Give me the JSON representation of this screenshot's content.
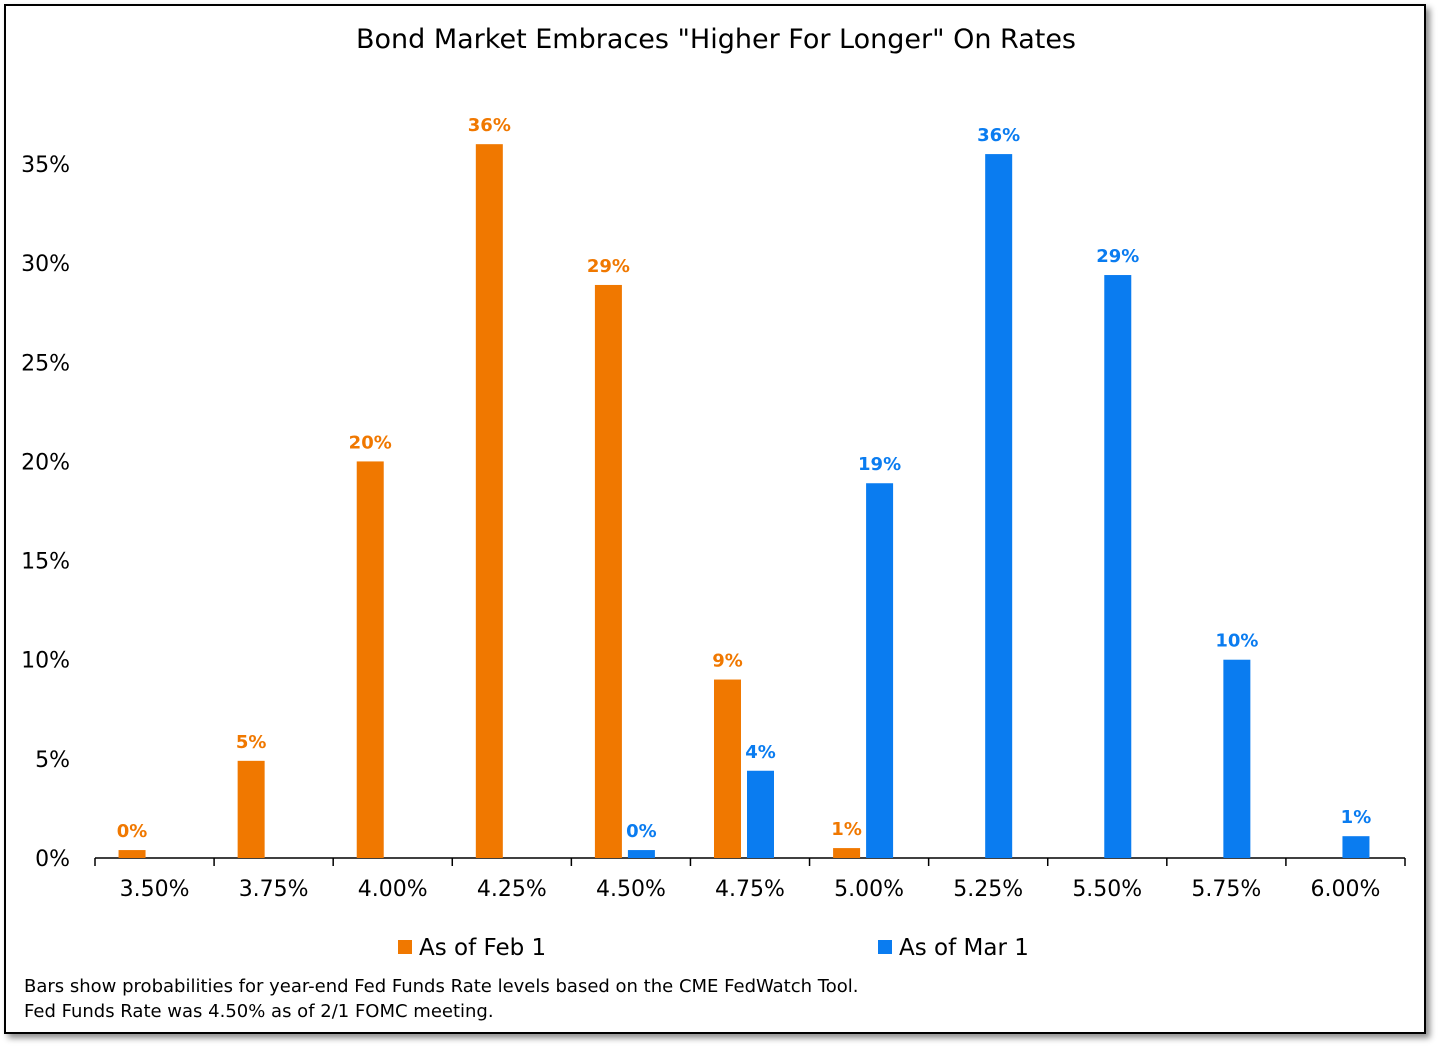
{
  "chart_data": {
    "type": "bar",
    "title": "Bond Market Embraces \"Higher For Longer\" On Rates",
    "xlabel": "",
    "ylabel": "",
    "categories": [
      "3.50%",
      "3.75%",
      "4.00%",
      "4.25%",
      "4.50%",
      "4.75%",
      "5.00%",
      "5.25%",
      "5.50%",
      "5.75%",
      "6.00%"
    ],
    "ylim": [
      0,
      35
    ],
    "yticks": [
      "0%",
      "5%",
      "10%",
      "15%",
      "20%",
      "25%",
      "30%",
      "35%"
    ],
    "ytick_values": [
      0,
      5,
      10,
      15,
      20,
      25,
      30,
      35
    ],
    "series": [
      {
        "name": "As of Feb 1",
        "color": "#F07800",
        "values": [
          0.4,
          4.9,
          20.0,
          36.0,
          28.9,
          9.0,
          0.5,
          null,
          null,
          null,
          null
        ],
        "labels": [
          "0%",
          "5%",
          "20%",
          "36%",
          "29%",
          "9%",
          "1%",
          null,
          null,
          null,
          null
        ]
      },
      {
        "name": "As of Mar 1",
        "color": "#0A7CF0",
        "values": [
          null,
          null,
          null,
          null,
          0.4,
          4.4,
          18.9,
          35.5,
          29.4,
          10.0,
          1.1
        ],
        "labels": [
          null,
          null,
          null,
          null,
          "0%",
          "4%",
          "19%",
          "36%",
          "29%",
          "10%",
          "1%"
        ]
      }
    ],
    "legend_position": "bottom",
    "grid": false
  },
  "footnote": {
    "line1": "Bars show probabilities for year-end Fed Funds Rate levels based on the CME FedWatch Tool.",
    "line2": "Fed Funds Rate was 4.50% as of 2/1 FOMC meeting."
  }
}
